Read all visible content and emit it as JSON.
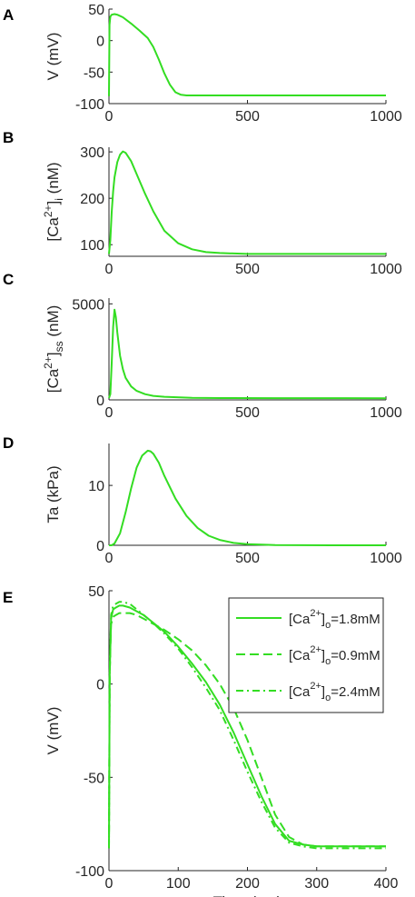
{
  "chart_data": [
    {
      "panel": "A",
      "type": "line",
      "ylabel": "V (mV)",
      "xlim": [
        0,
        1000
      ],
      "ylim": [
        -100,
        50
      ],
      "xticks": [
        "0",
        "500",
        "1000"
      ],
      "yticks": [
        "50",
        "0",
        "-50",
        "-100"
      ],
      "series": [
        {
          "color": "#33dd22",
          "dash": "",
          "x": [
            0,
            2,
            5,
            10,
            20,
            30,
            50,
            80,
            110,
            140,
            160,
            180,
            200,
            220,
            240,
            260,
            280,
            300,
            400,
            600,
            800,
            1000
          ],
          "y": [
            -88,
            25,
            38,
            41,
            42,
            41,
            37,
            27,
            16,
            4,
            -10,
            -30,
            -52,
            -70,
            -82,
            -86,
            -87,
            -87,
            -87,
            -87,
            -87,
            -87
          ]
        }
      ]
    },
    {
      "panel": "B",
      "type": "line",
      "ylabel": "[Ca2+]i (nM)",
      "xlim": [
        0,
        1000
      ],
      "ylim": [
        75,
        310
      ],
      "xticks": [
        "0",
        "500",
        "1000"
      ],
      "yticks": [
        "300",
        "200",
        "100"
      ],
      "series": [
        {
          "color": "#33dd22",
          "dash": "",
          "x": [
            0,
            5,
            10,
            15,
            20,
            30,
            40,
            50,
            60,
            80,
            100,
            130,
            160,
            200,
            250,
            300,
            350,
            400,
            500,
            700,
            1000
          ],
          "y": [
            80,
            110,
            170,
            215,
            245,
            278,
            294,
            301,
            298,
            280,
            252,
            210,
            172,
            130,
            103,
            90,
            84,
            82,
            80,
            80,
            80
          ]
        }
      ]
    },
    {
      "panel": "C",
      "type": "line",
      "ylabel": "[Ca2+]ss (nM)",
      "xlim": [
        0,
        1000
      ],
      "ylim": [
        0,
        5300
      ],
      "xticks": [
        "0",
        "500",
        "1000"
      ],
      "yticks": [
        "5000",
        "0"
      ],
      "series": [
        {
          "color": "#33dd22",
          "dash": "",
          "x": [
            0,
            5,
            10,
            15,
            20,
            25,
            30,
            40,
            50,
            60,
            80,
            100,
            130,
            160,
            200,
            300,
            400,
            600,
            1000
          ],
          "y": [
            90,
            300,
            1900,
            3800,
            4700,
            4300,
            3500,
            2300,
            1600,
            1150,
            700,
            470,
            300,
            210,
            160,
            110,
            95,
            90,
            85
          ]
        }
      ]
    },
    {
      "panel": "D",
      "type": "line",
      "ylabel": "Ta (kPa)",
      "xlim": [
        0,
        1000
      ],
      "ylim": [
        0,
        17
      ],
      "xticks": [
        "0",
        "500",
        "1000"
      ],
      "yticks": [
        "10",
        "0"
      ],
      "series": [
        {
          "color": "#33dd22",
          "dash": "",
          "x": [
            0,
            10,
            20,
            40,
            60,
            80,
            100,
            120,
            140,
            150,
            160,
            180,
            200,
            240,
            280,
            320,
            360,
            400,
            450,
            500,
            600,
            800,
            1000
          ],
          "y": [
            0,
            0,
            0.3,
            2,
            5.5,
            9.5,
            13,
            15,
            15.8,
            15.7,
            15.3,
            13.8,
            11.6,
            7.8,
            4.9,
            2.9,
            1.6,
            0.9,
            0.4,
            0.2,
            0.05,
            0,
            0
          ]
        }
      ]
    },
    {
      "panel": "E",
      "type": "line",
      "ylabel": "V (mV)",
      "xlabel": "Time (ms)",
      "xlim": [
        0,
        400
      ],
      "ylim": [
        -100,
        50
      ],
      "xticks": [
        "0",
        "100",
        "200",
        "300",
        "400"
      ],
      "yticks": [
        "50",
        "0",
        "-50",
        "-100"
      ],
      "legend": {
        "placement": "top-right",
        "entries": [
          {
            "prefix": "[Ca",
            "sup": "2+",
            "mid": "]",
            "sub": "o",
            "suffix": "=1.8mM"
          },
          {
            "prefix": "[Ca",
            "sup": "2+",
            "mid": "]",
            "sub": "o",
            "suffix": "=0.9mM"
          },
          {
            "prefix": "[Ca",
            "sup": "2+",
            "mid": "]",
            "sub": "o",
            "suffix": "=2.4mM"
          }
        ]
      },
      "series": [
        {
          "color": "#33dd22",
          "dash": "",
          "x": [
            0,
            1,
            3,
            6,
            10,
            15,
            20,
            30,
            40,
            50,
            60,
            80,
            100,
            120,
            140,
            160,
            180,
            200,
            220,
            240,
            260,
            280,
            300,
            350,
            400
          ],
          "y": [
            -88,
            5,
            35,
            40,
            41,
            42,
            42,
            41,
            39,
            37,
            34,
            28,
            20,
            11,
            1,
            -11,
            -26,
            -43,
            -60,
            -75,
            -84,
            -86,
            -87,
            -87,
            -87
          ]
        },
        {
          "color": "#33dd22",
          "dash": "10,5",
          "x": [
            0,
            1,
            3,
            6,
            10,
            15,
            20,
            30,
            40,
            50,
            60,
            80,
            100,
            120,
            140,
            160,
            180,
            200,
            220,
            240,
            260,
            280,
            300,
            350,
            400
          ],
          "y": [
            -88,
            5,
            32,
            36,
            37,
            38,
            38,
            38,
            37,
            35,
            33,
            29,
            24,
            18,
            10,
            0,
            -13,
            -30,
            -50,
            -70,
            -82,
            -86,
            -87,
            -87,
            -87
          ]
        },
        {
          "color": "#33dd22",
          "dash": "8,4,2,4",
          "x": [
            0,
            1,
            3,
            6,
            10,
            15,
            20,
            30,
            40,
            50,
            60,
            80,
            100,
            120,
            140,
            160,
            180,
            200,
            220,
            240,
            260,
            280,
            300,
            350,
            400
          ],
          "y": [
            -88,
            5,
            37,
            42,
            43,
            44,
            44,
            43,
            40,
            37,
            34,
            27,
            19,
            9,
            -2,
            -14,
            -30,
            -47,
            -63,
            -77,
            -85,
            -87,
            -88,
            -88,
            -88
          ]
        }
      ]
    }
  ]
}
